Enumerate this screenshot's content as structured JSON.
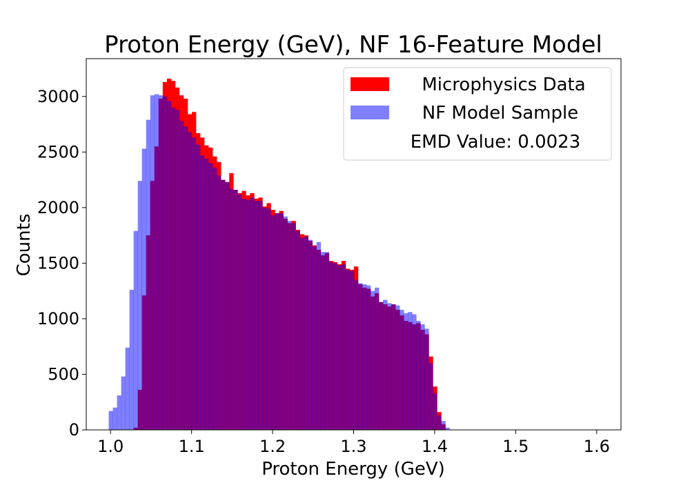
{
  "chart_data": {
    "type": "bar",
    "title": "Proton Energy (GeV), NF 16-Feature Model",
    "xlabel": "Proton Energy (GeV)",
    "ylabel": "Counts",
    "xlim": [
      0.97,
      1.63
    ],
    "ylim": [
      0,
      3340
    ],
    "xticks": [
      1.0,
      1.1,
      1.2,
      1.3,
      1.4,
      1.5,
      1.6
    ],
    "xtick_labels": [
      "1.0",
      "1.1",
      "1.2",
      "1.3",
      "1.4",
      "1.5",
      "1.6"
    ],
    "yticks": [
      0,
      500,
      1000,
      1500,
      2000,
      2500,
      3000
    ],
    "ytick_labels": [
      "0",
      "500",
      "1000",
      "1500",
      "2000",
      "2500",
      "3000"
    ],
    "grid": false,
    "legend_position": "top-right",
    "bin_edges_start": 0.9977,
    "bin_width": 0.00513,
    "series": [
      {
        "name": "Microphysics Data",
        "color": "#ff0000",
        "opacity": 1.0,
        "values": [
          0,
          0,
          0,
          0,
          0,
          0,
          20,
          360,
          1210,
          1750,
          2240,
          2550,
          2980,
          3130,
          3160,
          3140,
          3080,
          3010,
          2980,
          2840,
          2860,
          2670,
          2630,
          2560,
          2540,
          2460,
          2410,
          2250,
          2230,
          2310,
          2160,
          2130,
          2150,
          2110,
          2130,
          2080,
          2090,
          2010,
          2040,
          1980,
          1950,
          1970,
          1900,
          1860,
          1880,
          1800,
          1760,
          1750,
          1700,
          1660,
          1620,
          1570,
          1590,
          1520,
          1510,
          1490,
          1520,
          1450,
          1440,
          1470,
          1310,
          1280,
          1270,
          1200,
          1230,
          1150,
          1130,
          1110,
          1130,
          1080,
          1030,
          980,
          970,
          950,
          960,
          900,
          860,
          660,
          390,
          160,
          50,
          0,
          0,
          0,
          0,
          0,
          0,
          0,
          0,
          0,
          0,
          0,
          0,
          0,
          0,
          0,
          0,
          0,
          0,
          0,
          0,
          0,
          0,
          0,
          0,
          0,
          0,
          0,
          0,
          0,
          0,
          0,
          0,
          0,
          0,
          0,
          0,
          0,
          0,
          0,
          0,
          0,
          0,
          0,
          0,
          0,
          0,
          0,
          0
        ]
      },
      {
        "name": "NF Model Sample",
        "color": "#0000ff",
        "opacity": 0.5,
        "values": [
          170,
          200,
          310,
          480,
          740,
          1260,
          1790,
          2240,
          2530,
          2790,
          3010,
          3020,
          3010,
          3000,
          2960,
          2900,
          2880,
          2780,
          2730,
          2680,
          2630,
          2570,
          2470,
          2440,
          2400,
          2360,
          2290,
          2250,
          2230,
          2170,
          2160,
          2120,
          2080,
          2070,
          2090,
          2060,
          2060,
          2000,
          1990,
          1930,
          1950,
          1950,
          1920,
          1880,
          1860,
          1790,
          1730,
          1740,
          1710,
          1650,
          1690,
          1600,
          1600,
          1510,
          1500,
          1480,
          1490,
          1440,
          1430,
          1350,
          1320,
          1310,
          1300,
          1250,
          1280,
          1150,
          1170,
          1140,
          1130,
          1120,
          1080,
          1050,
          1060,
          1040,
          980,
          950,
          910,
          600,
          330,
          130,
          80,
          20,
          0,
          0,
          0,
          0,
          0,
          0,
          0,
          0,
          0,
          0,
          0,
          0,
          0,
          0,
          0,
          0,
          0,
          0,
          0,
          0,
          0,
          0,
          0,
          0,
          0,
          0,
          0,
          0,
          0,
          0,
          0,
          0,
          0,
          0,
          0,
          0,
          0,
          0,
          0,
          0,
          0,
          0,
          0,
          0,
          0,
          0,
          0,
          0,
          0,
          0
        ]
      }
    ],
    "annotation": "EMD Value: 0.0023",
    "overlap_color": "#800080"
  },
  "colors": {
    "axis": "#000000",
    "legend_border": "#cccccc"
  }
}
